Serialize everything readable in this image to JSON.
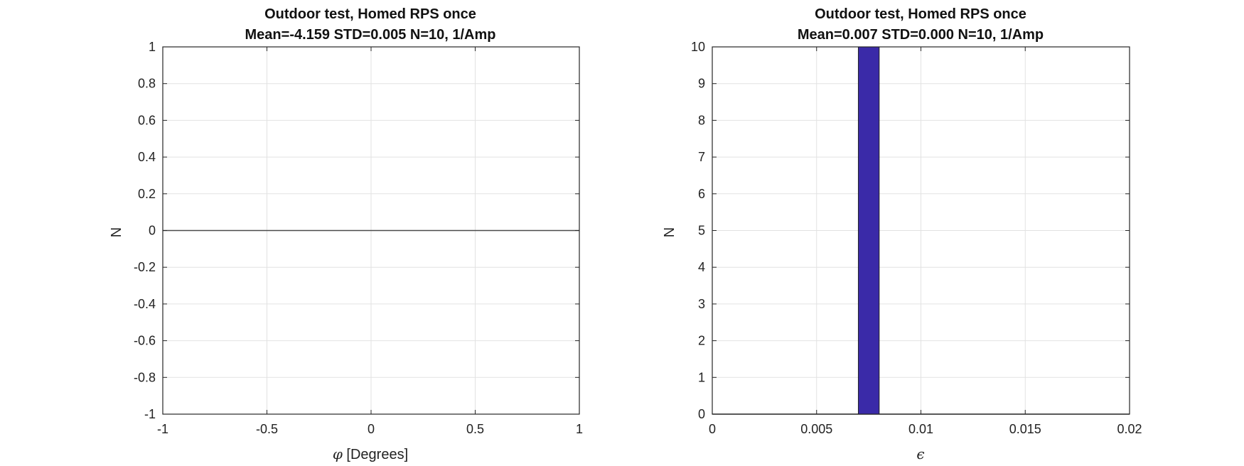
{
  "chart_data": [
    {
      "type": "bar",
      "title": "Outdoor test, Homed RPS once",
      "subtitle": "Mean=-4.159 STD=0.005 N=10, 1/Amp",
      "xlabel_symbol": "φ",
      "xlabel": " [Degrees]",
      "ylabel": "N",
      "xlim": [
        -1,
        1
      ],
      "ylim": [
        -1,
        1
      ],
      "xticks": [
        "-1",
        "-0.5",
        "0",
        "0.5",
        "1"
      ],
      "xtick_values": [
        -1,
        -0.5,
        0,
        0.5,
        1
      ],
      "yticks": [
        "-1",
        "-0.8",
        "-0.6",
        "-0.4",
        "-0.2",
        "0",
        "0.2",
        "0.4",
        "0.6",
        "0.8",
        "1"
      ],
      "ytick_values": [
        -1,
        -0.8,
        -0.6,
        -0.4,
        -0.2,
        0,
        0.2,
        0.4,
        0.6,
        0.8,
        1
      ],
      "grid": true,
      "baseline": 0,
      "bars": [],
      "bar_color": "#3a2aa8"
    },
    {
      "type": "bar",
      "title": "Outdoor test, Homed RPS once",
      "subtitle": "Mean=0.007 STD=0.000 N=10, 1/Amp",
      "xlabel_symbol": "ϵ",
      "xlabel": "",
      "ylabel": "N",
      "xlim": [
        0,
        0.02
      ],
      "ylim": [
        0,
        10
      ],
      "xticks": [
        "0",
        "0.005",
        "0.01",
        "0.015",
        "0.02"
      ],
      "xtick_values": [
        0,
        0.005,
        0.01,
        0.015,
        0.02
      ],
      "yticks": [
        "0",
        "1",
        "2",
        "3",
        "4",
        "5",
        "6",
        "7",
        "8",
        "9",
        "10"
      ],
      "ytick_values": [
        0,
        1,
        2,
        3,
        4,
        5,
        6,
        7,
        8,
        9,
        10
      ],
      "grid": true,
      "baseline": 0,
      "bars": [
        {
          "x0": 0.007,
          "x1": 0.008,
          "value": 10
        }
      ],
      "bar_color": "#3a2aa8"
    }
  ]
}
